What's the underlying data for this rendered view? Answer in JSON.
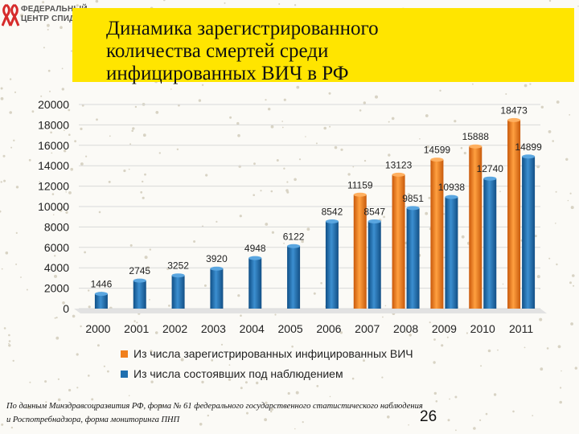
{
  "logo": {
    "line1": "ФЕДЕРАЛЬНЫЙ",
    "line2": "ЦЕНТР СПИД"
  },
  "slide": {
    "title_lines": [
      "Динамика зарегистрированного",
      "количества смертей среди",
      "инфицированных ВИЧ в РФ"
    ],
    "source_lines": [
      "По данным Минздравсоцразвития РФ, форма № 61 федерального государственного статистического наблюдения",
      "и Роспотребнадзора, форма мониторинга ПНП"
    ],
    "page_number": "26"
  },
  "colors": {
    "orange": "#f07f1c",
    "blue": "#1f6fae",
    "title_bg": "#ffe500"
  },
  "chart_data": {
    "type": "bar",
    "categories": [
      "2000",
      "2001",
      "2002",
      "2003",
      "2004",
      "2005",
      "2006",
      "2007",
      "2008",
      "2009",
      "2010",
      "2011"
    ],
    "series": [
      {
        "name": "Из числа зарегистрированных инфицированных ВИЧ",
        "values": [
          null,
          null,
          null,
          null,
          null,
          null,
          null,
          11159,
          13123,
          14599,
          15888,
          18473
        ]
      },
      {
        "name": "Из числа состоявших под наблюдением",
        "values": [
          1446,
          2745,
          3252,
          3920,
          4948,
          6122,
          8542,
          8547,
          9851,
          10938,
          12740,
          14899
        ]
      }
    ],
    "ylim": [
      0,
      20000
    ],
    "yticks": [
      0,
      2000,
      4000,
      6000,
      8000,
      10000,
      12000,
      14000,
      16000,
      18000,
      20000
    ],
    "legend_position": "bottom"
  }
}
